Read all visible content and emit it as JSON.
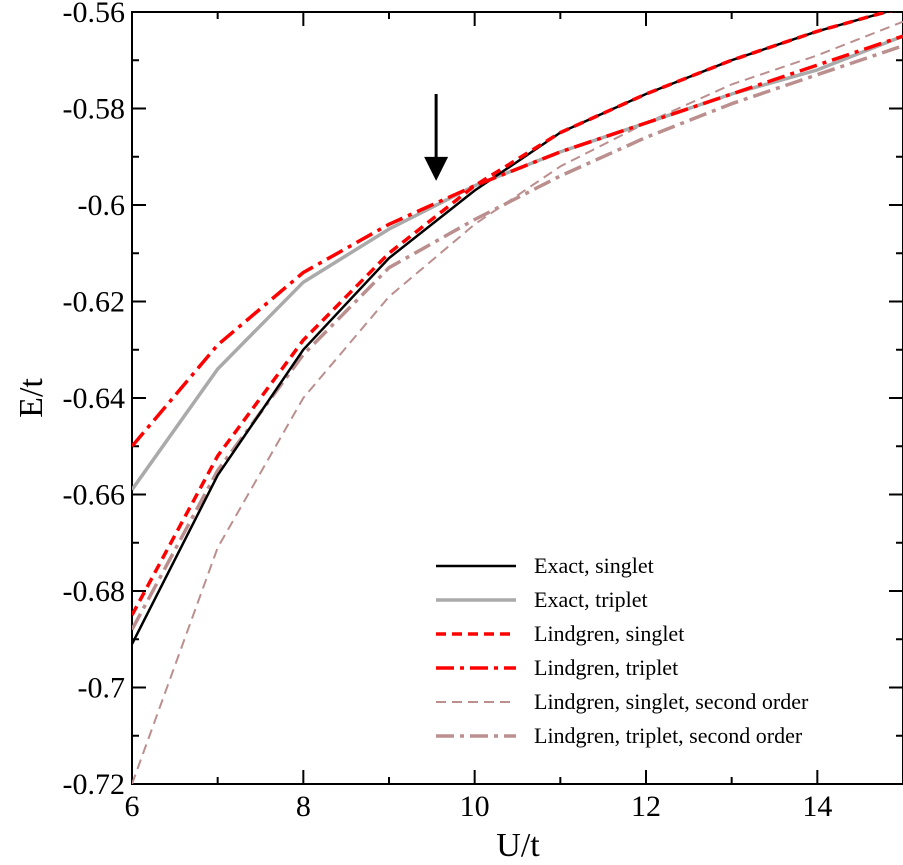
{
  "chart_data": {
    "type": "line",
    "title": "",
    "xlabel": "U/t",
    "ylabel": "E/t",
    "xlim": [
      6,
      15
    ],
    "ylim": [
      -0.72,
      -0.56
    ],
    "x_ticks": [
      6,
      8,
      10,
      12,
      14
    ],
    "x_tick_labels": [
      "6",
      "8",
      "10",
      "12",
      "14"
    ],
    "y_ticks": [
      -0.72,
      -0.7,
      -0.68,
      -0.66,
      -0.64,
      -0.62,
      -0.6,
      -0.58,
      -0.56
    ],
    "y_tick_labels": [
      "-0.72",
      "-0.7",
      "-0.68",
      "-0.66",
      "-0.64",
      "-0.62",
      "-0.6",
      "-0.58",
      "-0.56"
    ],
    "grid": false,
    "legend_position": "bottom-right",
    "annotations": [
      {
        "type": "arrow",
        "x": 9.55,
        "y_from": -0.577,
        "y_to": -0.595,
        "direction": "down"
      }
    ],
    "x": [
      6,
      7,
      8,
      9,
      10,
      11,
      12,
      13,
      14,
      15
    ],
    "series": [
      {
        "name": "Exact, singlet",
        "color": "#000000",
        "dash": "solid",
        "values": [
          -0.691,
          -0.656,
          -0.63,
          -0.611,
          -0.597,
          -0.585,
          -0.577,
          -0.57,
          -0.564,
          -0.559
        ]
      },
      {
        "name": "Exact, triplet",
        "color": "#aaaaaa",
        "dash": "solid",
        "values": [
          -0.659,
          -0.634,
          -0.616,
          -0.605,
          -0.596,
          -0.589,
          -0.583,
          -0.577,
          -0.572,
          -0.565
        ]
      },
      {
        "name": "Lindgren, singlet",
        "color": "#ff0000",
        "dash": "dashed",
        "values": [
          -0.685,
          -0.652,
          -0.628,
          -0.61,
          -0.596,
          -0.585,
          -0.577,
          -0.57,
          -0.564,
          -0.559
        ]
      },
      {
        "name": "Lindgren, triplet",
        "color": "#ff0000",
        "dash": "dash-dot",
        "values": [
          -0.65,
          -0.629,
          -0.614,
          -0.604,
          -0.596,
          -0.589,
          -0.583,
          -0.577,
          -0.571,
          -0.565
        ]
      },
      {
        "name": "Lindgren, singlet, second order",
        "color": "#bc8f8f",
        "dash": "dashed",
        "values": [
          -0.72,
          -0.671,
          -0.64,
          -0.619,
          -0.604,
          -0.592,
          -0.583,
          -0.575,
          -0.569,
          -0.562
        ]
      },
      {
        "name": "Lindgren, triplet, second order",
        "color": "#bc8f8f",
        "dash": "dash-dot",
        "values": [
          -0.688,
          -0.655,
          -0.631,
          -0.613,
          -0.603,
          -0.594,
          -0.586,
          -0.579,
          -0.573,
          -0.567
        ]
      }
    ]
  }
}
